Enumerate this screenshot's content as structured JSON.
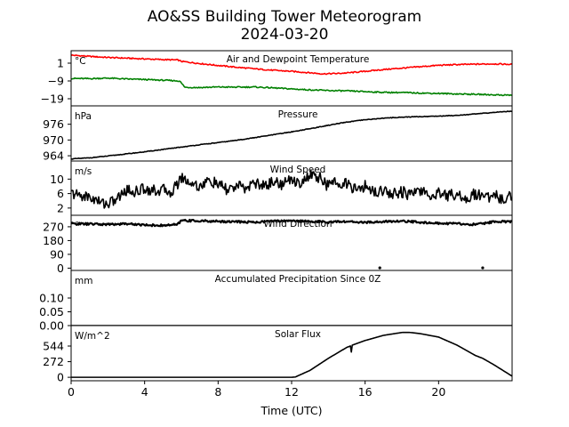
{
  "figure": {
    "title_line1": "AO&SS Building Tower Meteorogram",
    "title_line2": "2024-03-20",
    "xlabel": "Time (UTC)"
  },
  "chart_data": [
    {
      "type": "line",
      "title": "Air and Dewpoint Temperature",
      "unit": "°C",
      "ylim": [
        -23,
        8
      ],
      "yticks": [
        1,
        -9,
        -19
      ],
      "xlim": [
        0,
        24
      ],
      "series": [
        {
          "color": "#ff0000",
          "x": [
            0,
            1,
            2,
            3,
            4,
            5,
            5.8,
            6,
            7,
            8,
            9,
            10,
            11,
            12,
            13,
            13.7,
            14.5,
            15,
            16,
            17,
            18,
            19,
            20,
            21,
            22,
            23,
            24
          ],
          "values": [
            5.5,
            4.8,
            4.2,
            3.8,
            3.4,
            3.0,
            2.8,
            2.0,
            0.8,
            -0.3,
            -1.3,
            -2.2,
            -3.0,
            -3.6,
            -4.4,
            -5.0,
            -4.8,
            -4.5,
            -3.6,
            -2.6,
            -1.8,
            -1.0,
            -0.2,
            0.2,
            0.4,
            0.6,
            0.3
          ]
        },
        {
          "color": "#008000",
          "x": [
            0,
            1,
            2,
            3,
            4,
            5,
            5.5,
            5.9,
            6.2,
            7,
            8,
            9,
            10,
            11,
            12,
            13,
            14,
            15,
            16,
            17,
            18,
            19,
            20,
            21,
            22,
            23,
            24
          ],
          "values": [
            -7.6,
            -7.7,
            -7.4,
            -7.9,
            -8.2,
            -8.6,
            -8.8,
            -9.0,
            -12.6,
            -12.7,
            -12.4,
            -12.5,
            -12.4,
            -12.9,
            -13.5,
            -14.0,
            -14.4,
            -14.6,
            -15.0,
            -15.4,
            -15.5,
            -15.8,
            -16.0,
            -16.3,
            -16.5,
            -16.8,
            -17.0
          ]
        }
      ]
    },
    {
      "type": "line",
      "title": "Pressure",
      "unit": "hPa",
      "ylim": [
        962,
        983
      ],
      "yticks": [
        976,
        970,
        964
      ],
      "xlim": [
        0,
        24
      ],
      "series": [
        {
          "color": "#000000",
          "x": [
            0,
            1,
            2,
            3,
            4,
            5,
            6,
            7,
            8,
            9,
            10,
            11,
            12,
            13,
            14,
            15,
            16,
            17,
            18,
            19,
            20,
            21,
            22,
            23,
            24
          ],
          "values": [
            962.8,
            963.2,
            963.9,
            964.7,
            965.5,
            966.4,
            967.3,
            968.2,
            969.0,
            969.9,
            970.9,
            972.0,
            973.1,
            974.3,
            975.6,
            976.8,
            977.7,
            978.3,
            978.7,
            978.9,
            979.1,
            979.4,
            979.9,
            980.5,
            981.0
          ]
        }
      ]
    },
    {
      "type": "line",
      "title": "Wind Speed",
      "unit": "m/s",
      "ylim": [
        0,
        15
      ],
      "yticks": [
        10,
        6,
        2
      ],
      "xlim": [
        0,
        24
      ],
      "series": [
        {
          "color": "#000000",
          "x": [
            0,
            0.5,
            1,
            1.5,
            2,
            2.5,
            3,
            3.5,
            4,
            4.5,
            5,
            5.5,
            6,
            6.5,
            7,
            7.5,
            8,
            8.5,
            9,
            9.5,
            10,
            10.5,
            11,
            11.5,
            12,
            12.5,
            13,
            13.5,
            14,
            14.5,
            15,
            15.5,
            16,
            16.5,
            17,
            17.5,
            18,
            18.5,
            19,
            19.5,
            20,
            20.5,
            21,
            21.5,
            22,
            22.5,
            23,
            23.5,
            24
          ],
          "values": [
            6,
            5.5,
            5,
            3.8,
            3.2,
            4.5,
            7,
            6.5,
            7.5,
            6.8,
            7,
            6.5,
            10.5,
            9,
            8,
            9.5,
            8.5,
            7,
            8,
            7.5,
            9,
            8,
            9.5,
            8.5,
            10,
            9,
            11,
            10.5,
            8,
            9.5,
            8.5,
            7,
            8,
            6.5,
            7,
            6,
            6.5,
            5.5,
            7,
            5,
            6.5,
            5.5,
            6,
            4.5,
            6,
            5,
            5.5,
            4.5,
            5.5
          ]
        }
      ]
    },
    {
      "type": "line",
      "title": "Wind Direction",
      "unit": "°",
      "ylim": [
        -15,
        345
      ],
      "yticks": [
        270,
        180,
        90,
        0
      ],
      "xlim": [
        0,
        24
      ],
      "series": [
        {
          "color": "#000000",
          "x": [
            0,
            1,
            2,
            3,
            4,
            5,
            5.8,
            6,
            7,
            8,
            9,
            10,
            11,
            12,
            13,
            14,
            15,
            16,
            17,
            18,
            19,
            20,
            21,
            22,
            23,
            24
          ],
          "values": [
            290,
            288,
            285,
            290,
            282,
            278,
            285,
            312,
            308,
            305,
            303,
            300,
            307,
            310,
            305,
            300,
            304,
            298,
            303,
            307,
            300,
            292,
            290,
            285,
            302,
            305
          ]
        }
      ],
      "isolated_points": [
        {
          "x": 16.8,
          "y": 2
        },
        {
          "x": 22.4,
          "y": 2
        }
      ]
    },
    {
      "type": "line",
      "title": "Accumulated Precipitation Since 0Z",
      "unit": "mm",
      "ylim": [
        0,
        0.2
      ],
      "yticks": [
        0.1,
        0.05,
        0.0
      ],
      "ytick_labels": [
        "0.10",
        "0.05",
        "0.00"
      ],
      "xlim": [
        0,
        24
      ],
      "series": [
        {
          "color": "#000000",
          "x": [
            0,
            24
          ],
          "values": [
            0,
            0
          ]
        }
      ]
    },
    {
      "type": "line",
      "title": "Solar Flux",
      "unit": "W/m^2",
      "ylim": [
        -60,
        900
      ],
      "yticks": [
        544,
        272,
        0
      ],
      "xlim": [
        0,
        24
      ],
      "xticks": [
        0,
        4,
        8,
        12,
        16,
        20
      ],
      "series": [
        {
          "color": "#000000",
          "x": [
            0,
            12,
            12.2,
            13,
            14,
            15,
            15.2,
            15.25,
            15.3,
            16,
            17,
            18,
            18.4,
            19,
            20,
            21,
            22,
            22.4,
            23,
            24
          ],
          "values": [
            0,
            0,
            5,
            120,
            330,
            520,
            545,
            440,
            560,
            640,
            730,
            780,
            782,
            760,
            700,
            560,
            380,
            330,
            220,
            20
          ]
        }
      ]
    }
  ]
}
